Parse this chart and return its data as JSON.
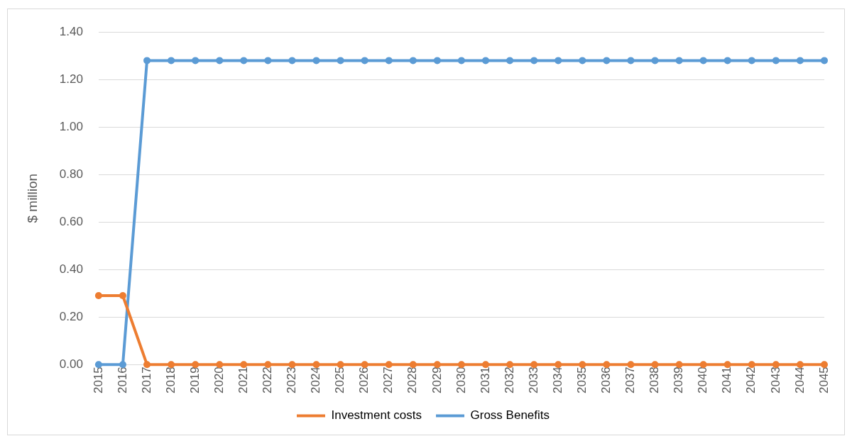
{
  "chart_data": {
    "type": "line",
    "ylabel": "$ million",
    "categories": [
      "2015",
      "2016",
      "2017",
      "2018",
      "2019",
      "2020",
      "2021",
      "2022",
      "2023",
      "2024",
      "2025",
      "2026",
      "2027",
      "2028",
      "2029",
      "2030",
      "2031",
      "2032",
      "2033",
      "2034",
      "2035",
      "2036",
      "2037",
      "2038",
      "2039",
      "2040",
      "2041",
      "2042",
      "2043",
      "2044",
      "2045"
    ],
    "series": [
      {
        "name": "Investment costs",
        "color": "#ed7d31",
        "values": [
          0.29,
          0.29,
          0,
          0,
          0,
          0,
          0,
          0,
          0,
          0,
          0,
          0,
          0,
          0,
          0,
          0,
          0,
          0,
          0,
          0,
          0,
          0,
          0,
          0,
          0,
          0,
          0,
          0,
          0,
          0,
          0
        ]
      },
      {
        "name": "Gross Benefits",
        "color": "#5b9bd5",
        "values": [
          0,
          0,
          1.28,
          1.28,
          1.28,
          1.28,
          1.28,
          1.28,
          1.28,
          1.28,
          1.28,
          1.28,
          1.28,
          1.28,
          1.28,
          1.28,
          1.28,
          1.28,
          1.28,
          1.28,
          1.28,
          1.28,
          1.28,
          1.28,
          1.28,
          1.28,
          1.28,
          1.28,
          1.28,
          1.28,
          1.28
        ]
      }
    ],
    "ylim": [
      0,
      1.4
    ],
    "yticks": [
      {
        "value": 0,
        "label": "0.00"
      },
      {
        "value": 0.2,
        "label": "0.20"
      },
      {
        "value": 0.4,
        "label": "0.40"
      },
      {
        "value": 0.6,
        "label": "0.60"
      },
      {
        "value": 0.8,
        "label": "0.80"
      },
      {
        "value": 1,
        "label": "1.00"
      },
      {
        "value": 1.2,
        "label": "1.20"
      },
      {
        "value": 1.4,
        "label": "1.40"
      }
    ],
    "grid": "y",
    "legend": "bottom",
    "marker": "circle",
    "line_style": "solid"
  }
}
